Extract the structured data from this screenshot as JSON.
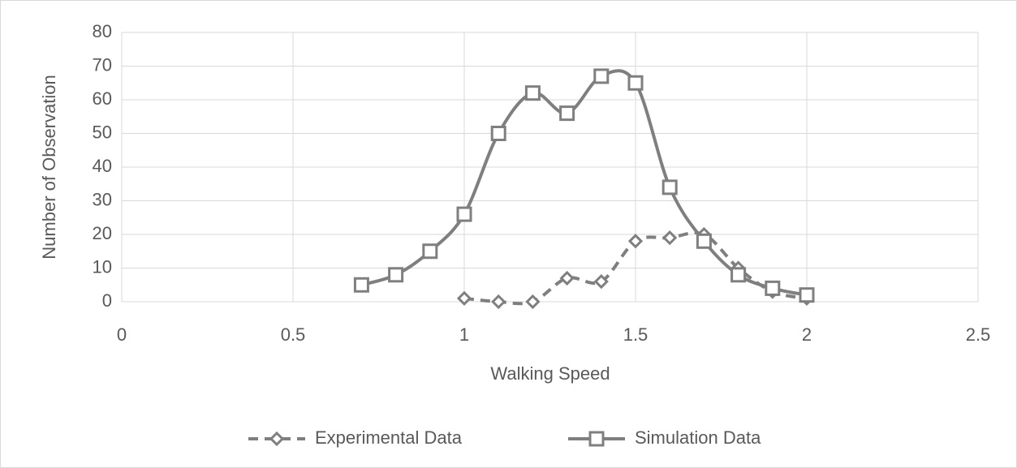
{
  "chart_data": {
    "type": "scatter",
    "smooth": true,
    "xlabel": "Walking Speed",
    "ylabel": "Number of Observation",
    "xlim": [
      0,
      2.5
    ],
    "xticks": [
      0,
      0.5,
      1,
      1.5,
      2,
      2.5
    ],
    "ylim": [
      0,
      80
    ],
    "yticks": [
      0,
      10,
      20,
      30,
      40,
      50,
      60,
      70,
      80
    ],
    "grid": true,
    "legend": "bottom",
    "series": [
      {
        "name": "Experimental Data",
        "color": "#7f7f7f",
        "line_style": "dashed",
        "marker": "diamond",
        "x": [
          1.0,
          1.1,
          1.2,
          1.3,
          1.4,
          1.5,
          1.6,
          1.7,
          1.8,
          1.9,
          2.0
        ],
        "values": [
          1,
          0,
          0,
          7,
          6,
          18,
          19,
          20,
          10,
          3,
          1
        ]
      },
      {
        "name": "Simulation Data",
        "color": "#7f7f7f",
        "line_style": "solid",
        "marker": "square",
        "x": [
          0.7,
          0.8,
          0.9,
          1.0,
          1.1,
          1.2,
          1.3,
          1.4,
          1.5,
          1.6,
          1.7,
          1.8,
          1.9,
          2.0
        ],
        "values": [
          5,
          8,
          15,
          26,
          50,
          62,
          56,
          67,
          65,
          34,
          18,
          8,
          4,
          2
        ]
      }
    ]
  }
}
